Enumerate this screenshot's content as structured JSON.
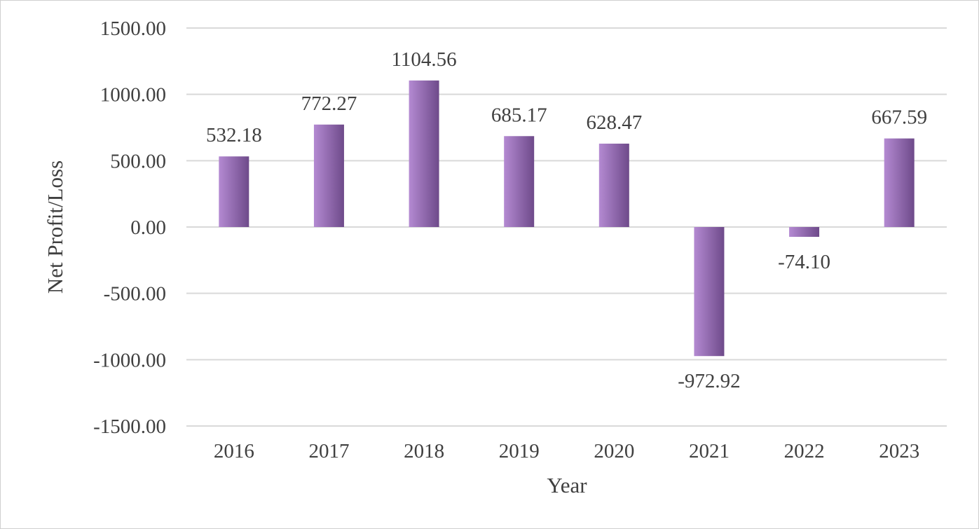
{
  "chart_data": {
    "type": "bar",
    "categories": [
      "2016",
      "2017",
      "2018",
      "2019",
      "2020",
      "2021",
      "2022",
      "2023"
    ],
    "series": [
      {
        "values": [
          532.18,
          772.27,
          1104.56,
          685.17,
          628.47,
          -972.92,
          -74.1,
          667.59
        ],
        "labels": [
          "532.18",
          "772.27",
          "1104.56",
          "685.17",
          "628.47",
          "-972.92",
          "-74.10",
          "667.59"
        ]
      }
    ],
    "title": "",
    "xlabel": "Year",
    "ylabel": "Net Profit/Loss",
    "ylim": [
      -1500,
      1500
    ],
    "yticks": [
      1500,
      1000,
      500,
      0,
      -500,
      -1000,
      -1500
    ],
    "ytick_labels": [
      "1500.00",
      "1000.00",
      "500.00",
      "0.00",
      "-500.00",
      "-1000.00",
      "-1500.00"
    ],
    "grid": true,
    "legend": "none",
    "colors": {
      "bar_light": "#b48ad2",
      "bar_dark": "#6e4a8a",
      "gridline": "#d9d9d9",
      "text": "#404040"
    }
  }
}
